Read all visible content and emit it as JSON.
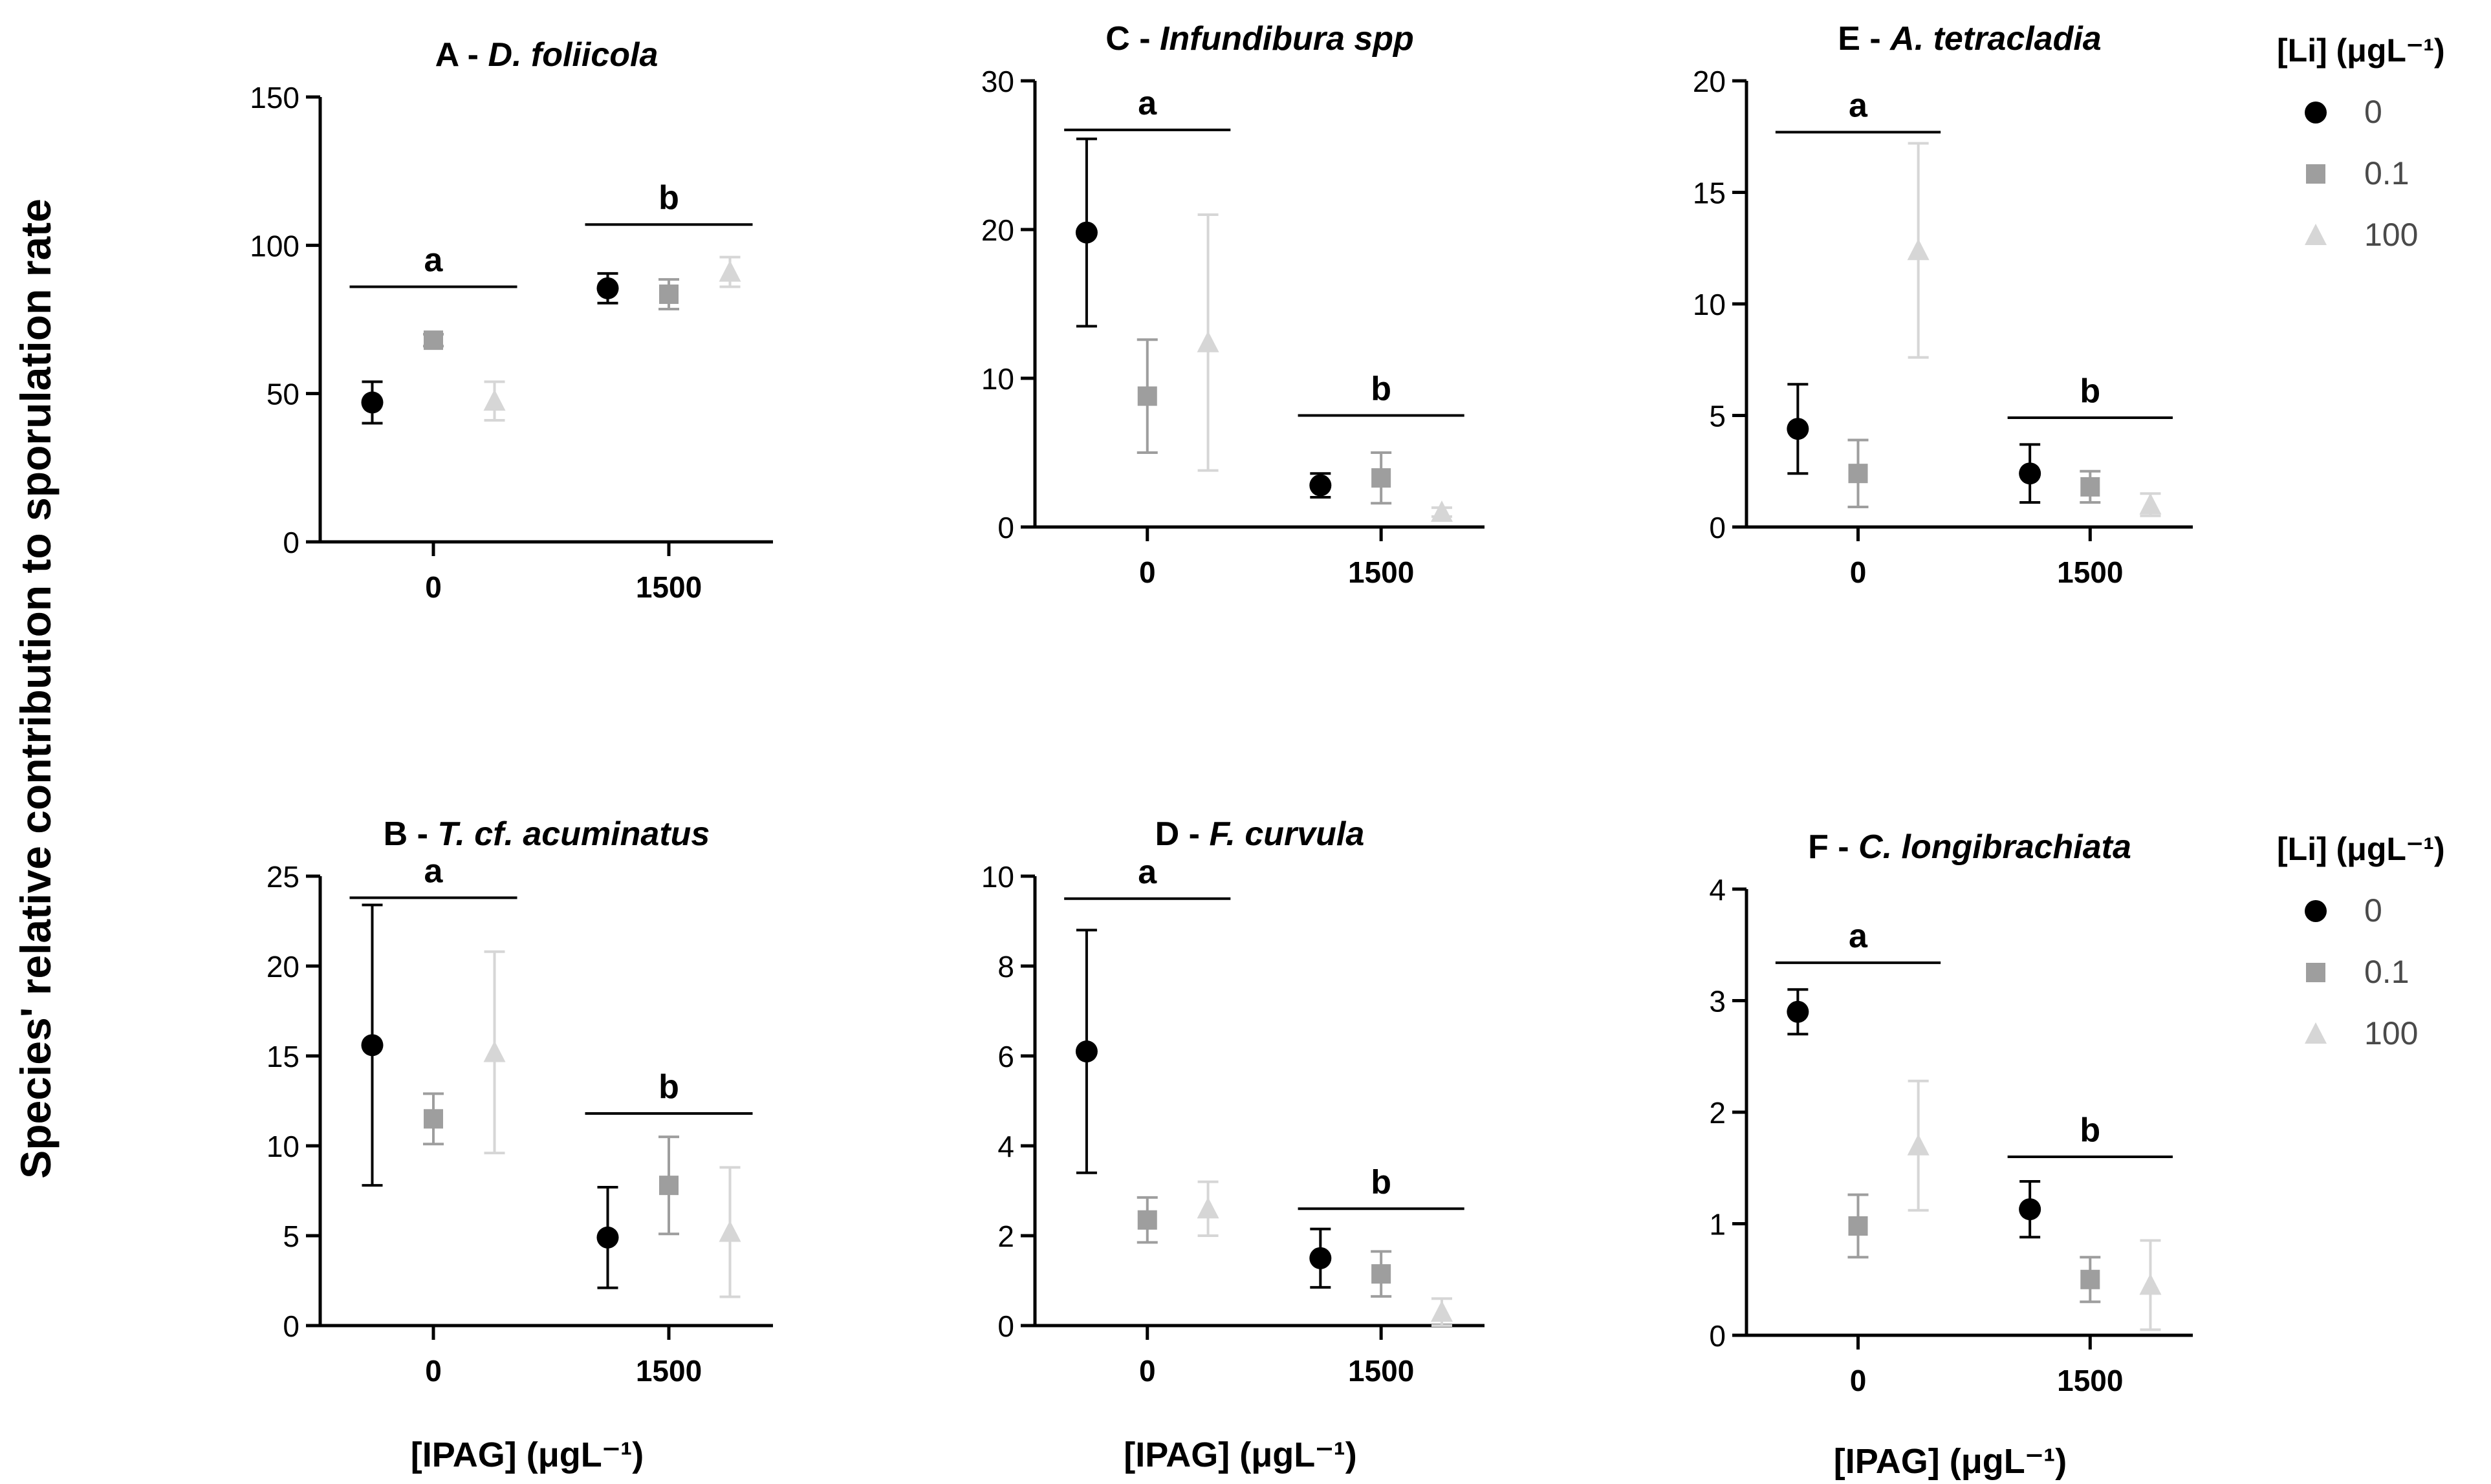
{
  "figure": {
    "ylabel": "Species' relative contribution to sporulation rate",
    "xlabel": "[IPAG] (μgL⁻¹)"
  },
  "legend": {
    "title": "[Li] (μgL⁻¹)",
    "entries": [
      {
        "label": "0",
        "marker": "circle",
        "color": "#000000"
      },
      {
        "label": "0.1",
        "marker": "square",
        "color": "#9e9e9e"
      },
      {
        "label": "100",
        "marker": "triangle",
        "color": "#d6d6d6"
      }
    ]
  },
  "chart_data": [
    {
      "type": "scatter",
      "panel": "A",
      "title": "A - D. foliicola",
      "title_prefix": "A - ",
      "title_italic": "D. foliicola",
      "categories": [
        "0",
        "1500"
      ],
      "ylim": [
        0,
        150
      ],
      "yticks": [
        0,
        50,
        100,
        150
      ],
      "series": [
        {
          "name": "0",
          "values": [
            47,
            85.5
          ],
          "errors": [
            7,
            5
          ]
        },
        {
          "name": "0.1",
          "values": [
            68,
            83.5
          ],
          "errors": [
            2,
            5
          ]
        },
        {
          "name": "100",
          "values": [
            47.5,
            91
          ],
          "errors": [
            6.5,
            5
          ]
        }
      ],
      "groups": [
        {
          "label": "a",
          "y": 86
        },
        {
          "label": "b",
          "y": 107
        }
      ]
    },
    {
      "type": "scatter",
      "panel": "B",
      "title": "B - T. cf. acuminatus",
      "title_prefix": "B - ",
      "title_italic": "T. cf. acuminatus",
      "categories": [
        "0",
        "1500"
      ],
      "ylim": [
        0,
        25
      ],
      "yticks": [
        0,
        5,
        10,
        15,
        20,
        25
      ],
      "series": [
        {
          "name": "0",
          "values": [
            15.6,
            4.9
          ],
          "errors": [
            7.8,
            2.8
          ]
        },
        {
          "name": "0.1",
          "values": [
            11.5,
            7.8
          ],
          "errors": [
            1.4,
            2.7
          ]
        },
        {
          "name": "100",
          "values": [
            15.2,
            5.2
          ],
          "errors": [
            5.6,
            3.6
          ]
        }
      ],
      "groups": [
        {
          "label": "a",
          "y": 23.8
        },
        {
          "label": "b",
          "y": 11.8
        }
      ]
    },
    {
      "type": "scatter",
      "panel": "C",
      "title": "C - Infundibura spp",
      "title_prefix": "C - ",
      "title_italic": "Infundibura spp",
      "categories": [
        "0",
        "1500"
      ],
      "ylim": [
        0,
        30
      ],
      "yticks": [
        0,
        10,
        20,
        30
      ],
      "series": [
        {
          "name": "0",
          "values": [
            19.8,
            2.8
          ],
          "errors": [
            6.3,
            0.8
          ]
        },
        {
          "name": "0.1",
          "values": [
            8.8,
            3.3
          ],
          "errors": [
            3.8,
            1.7
          ]
        },
        {
          "name": "100",
          "values": [
            12.4,
            1.0
          ],
          "errors": [
            8.6,
            0.3
          ]
        }
      ],
      "groups": [
        {
          "label": "a",
          "y": 26.7
        },
        {
          "label": "b",
          "y": 7.5
        }
      ]
    },
    {
      "type": "scatter",
      "panel": "D",
      "title": "D - F. curvula",
      "title_prefix": "D - ",
      "title_italic": "F. curvula",
      "categories": [
        "0",
        "1500"
      ],
      "ylim": [
        0,
        10
      ],
      "yticks": [
        0,
        2,
        4,
        6,
        8,
        10
      ],
      "series": [
        {
          "name": "0",
          "values": [
            6.1,
            1.5
          ],
          "errors": [
            2.7,
            0.65
          ]
        },
        {
          "name": "0.1",
          "values": [
            2.35,
            1.15
          ],
          "errors": [
            0.5,
            0.5
          ]
        },
        {
          "name": "100",
          "values": [
            2.6,
            0.3
          ],
          "errors": [
            0.6,
            0.3
          ]
        }
      ],
      "groups": [
        {
          "label": "a",
          "y": 9.5
        },
        {
          "label": "b",
          "y": 2.6
        }
      ]
    },
    {
      "type": "scatter",
      "panel": "E",
      "title": "E - A. tetracladia",
      "title_prefix": "E - ",
      "title_italic": "A. tetracladia",
      "categories": [
        "0",
        "1500"
      ],
      "ylim": [
        0,
        20
      ],
      "yticks": [
        0,
        5,
        10,
        15,
        20
      ],
      "series": [
        {
          "name": "0",
          "values": [
            4.4,
            2.4
          ],
          "errors": [
            2.0,
            1.3
          ]
        },
        {
          "name": "0.1",
          "values": [
            2.4,
            1.8
          ],
          "errors": [
            1.5,
            0.7
          ]
        },
        {
          "name": "100",
          "values": [
            12.4,
            1.0
          ],
          "errors": [
            4.8,
            0.5
          ]
        }
      ],
      "groups": [
        {
          "label": "a",
          "y": 17.7
        },
        {
          "label": "b",
          "y": 4.9
        }
      ]
    },
    {
      "type": "scatter",
      "panel": "F",
      "title": "F - C. longibrachiata",
      "title_prefix": "F - ",
      "title_italic": "C. longibrachiata",
      "categories": [
        "0",
        "1500"
      ],
      "ylim": [
        0,
        4
      ],
      "yticks": [
        0,
        1,
        2,
        3,
        4
      ],
      "series": [
        {
          "name": "0",
          "values": [
            2.9,
            1.13
          ],
          "errors": [
            0.2,
            0.25
          ]
        },
        {
          "name": "0.1",
          "values": [
            0.98,
            0.5
          ],
          "errors": [
            0.28,
            0.2
          ]
        },
        {
          "name": "100",
          "values": [
            1.7,
            0.45
          ],
          "errors": [
            0.58,
            0.4
          ]
        }
      ],
      "groups": [
        {
          "label": "a",
          "y": 3.34
        },
        {
          "label": "b",
          "y": 1.6
        }
      ]
    }
  ]
}
